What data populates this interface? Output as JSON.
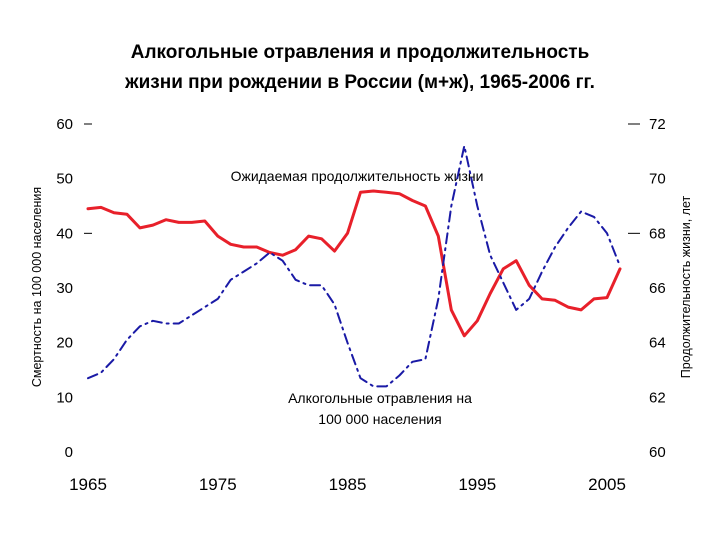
{
  "chart_data": {
    "type": "line",
    "title_line1": "Алкогольные отравления и продолжительность",
    "title_line2": "жизни при рождении в России (м+ж), 1965-2006 гг.",
    "ylabel_left": "Смертность на 100 000 населения",
    "ylabel_right": "Продолжительность жизни, лет",
    "ylim_left": [
      0,
      60
    ],
    "ylim_right": [
      60,
      72
    ],
    "yticks_left": [
      "0",
      "10",
      "20",
      "30",
      "40",
      "50",
      "60"
    ],
    "yticks_right": [
      "60",
      "62",
      "64",
      "66",
      "68",
      "70",
      "72"
    ],
    "xticks": [
      "1965",
      "1975",
      "1985",
      "1995",
      "2005"
    ],
    "legend": "none",
    "grid": false,
    "annotation_life": "Ожидаемая продолжительность жизни",
    "annotation_alc_line1": "Алкогольные отравления на",
    "annotation_alc_line2": "100 000 населения",
    "colors": {
      "life": "#e8202a",
      "alcohol": "#1a1aa6"
    },
    "series": [
      {
        "key": "life",
        "axis": "right",
        "style": "solid",
        "x": [
          1965,
          1966,
          1967,
          1968,
          1969,
          1970,
          1971,
          1972,
          1973,
          1974,
          1975,
          1976,
          1977,
          1978,
          1979,
          1980,
          1981,
          1982,
          1983,
          1984,
          1985,
          1986,
          1987,
          1988,
          1989,
          1990,
          1991,
          1992,
          1993,
          1994,
          1995,
          1996,
          1997,
          1998,
          1999,
          2000,
          2001,
          2002,
          2003,
          2004,
          2005,
          2006
        ],
        "values": [
          68.9,
          68.95,
          68.75,
          68.7,
          68.2,
          68.3,
          68.5,
          68.4,
          68.4,
          68.45,
          67.9,
          67.6,
          67.5,
          67.5,
          67.3,
          67.2,
          67.4,
          67.9,
          67.8,
          67.35,
          68.0,
          69.5,
          69.55,
          69.5,
          69.45,
          69.2,
          69.0,
          67.9,
          65.2,
          64.25,
          64.8,
          65.8,
          66.7,
          67.0,
          66.1,
          65.6,
          65.55,
          65.3,
          65.2,
          65.6,
          65.65,
          66.7
        ]
      },
      {
        "key": "alcohol",
        "axis": "left",
        "style": "dashdot",
        "x": [
          1965,
          1966,
          1967,
          1968,
          1969,
          1970,
          1971,
          1972,
          1973,
          1974,
          1975,
          1976,
          1977,
          1978,
          1979,
          1980,
          1981,
          1982,
          1983,
          1984,
          1985,
          1986,
          1987,
          1988,
          1989,
          1990,
          1991,
          1992,
          1993,
          1994,
          1995,
          1996,
          1997,
          1998,
          1999,
          2000,
          2001,
          2002,
          2003,
          2004,
          2005,
          2006
        ],
        "values": [
          13.5,
          14.5,
          17,
          20.5,
          23,
          24,
          23.5,
          23.5,
          25,
          26.5,
          28,
          31.5,
          33,
          34.5,
          36.5,
          35,
          31.5,
          30.5,
          30.5,
          27,
          20,
          13.5,
          12,
          12,
          14,
          16.5,
          17,
          28,
          45,
          56,
          45,
          36,
          31,
          26,
          28,
          33,
          37.5,
          41,
          44,
          43,
          40,
          34
        ]
      }
    ]
  }
}
